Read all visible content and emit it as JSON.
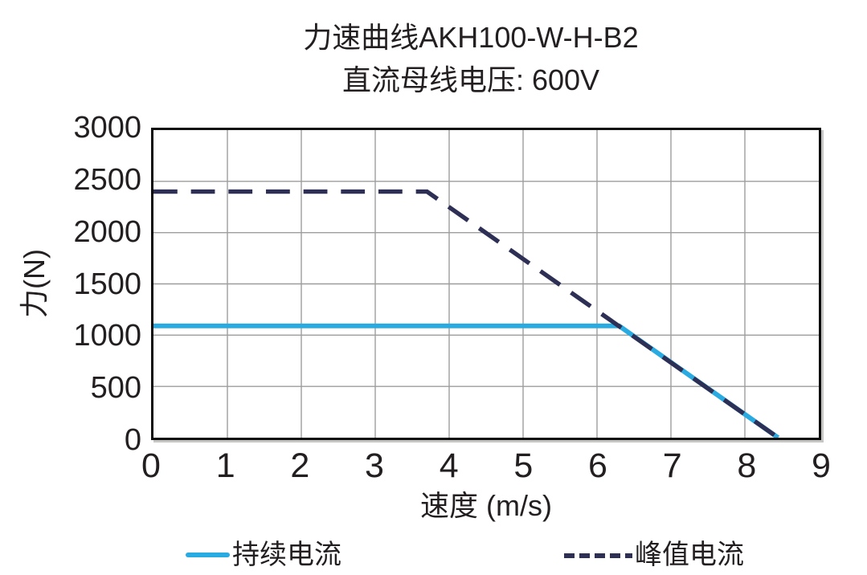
{
  "title": {
    "line1": "力速曲线AKH100-W-H-B2",
    "line2": "直流母线电压: 600V"
  },
  "colors": {
    "continuous_line": "#29abe2",
    "peak_line": "#2d2f55",
    "gridline": "#9d9d9c",
    "plot_border": "#0d0d0d",
    "text": "#231f20"
  },
  "chart_data": {
    "type": "line",
    "title": "力速曲线AKH100-W-H-B2",
    "subtitle": "直流母线电压: 600V",
    "xlabel": "速度 (m/s)",
    "ylabel": "力(N)",
    "xlim": [
      0,
      9
    ],
    "ylim": [
      0,
      3000
    ],
    "x_ticks": [
      0,
      1,
      2,
      3,
      4,
      5,
      6,
      7,
      8,
      9
    ],
    "y_ticks": [
      0,
      500,
      1000,
      1500,
      2000,
      2500,
      3000
    ],
    "grid": true,
    "legend_position": "bottom",
    "series": [
      {
        "name": "持续电流",
        "line_style": "solid",
        "color": "#29abe2",
        "points": [
          [
            0,
            1090
          ],
          [
            6.3,
            1090
          ],
          [
            8.45,
            0
          ]
        ]
      },
      {
        "name": "峰值电流",
        "line_style": "dashed",
        "color": "#2d2f55",
        "points": [
          [
            0,
            2400
          ],
          [
            3.7,
            2400
          ],
          [
            8.45,
            0
          ]
        ]
      }
    ]
  }
}
